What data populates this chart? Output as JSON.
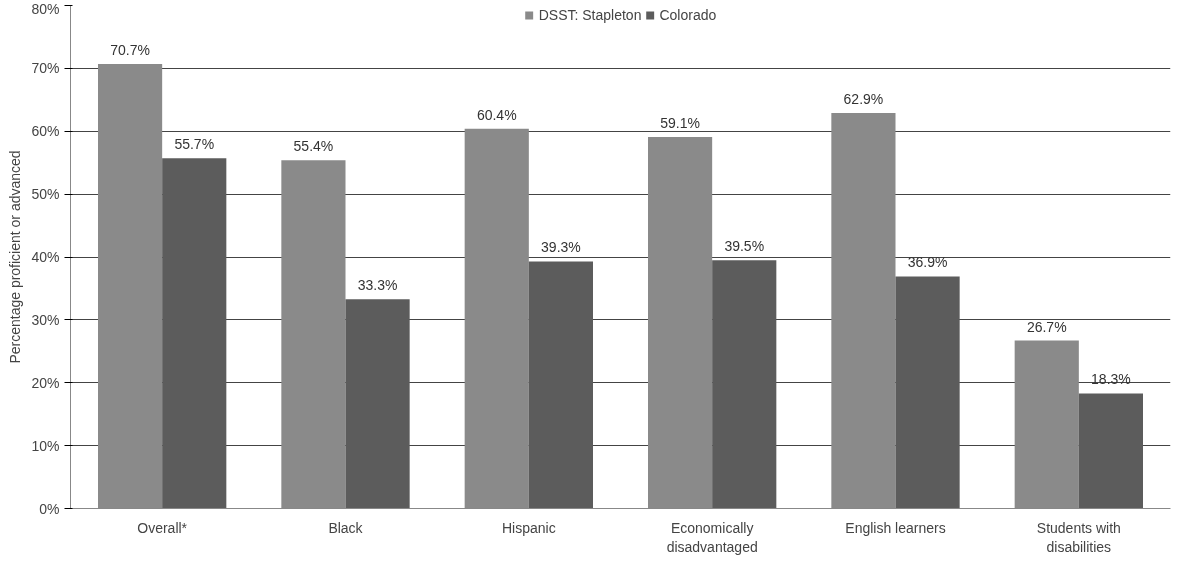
{
  "chart_data": {
    "type": "bar",
    "ylabel": "Percentage proficient or advanced",
    "categories": [
      "Overall*",
      "Black",
      "Hispanic",
      "Economically\ndisadvantaged",
      "English learners",
      "Students with\ndisabilities"
    ],
    "series": [
      {
        "name": "DSST: Stapleton",
        "color": "#8a8a8a",
        "values": [
          70.7,
          55.4,
          60.4,
          59.1,
          62.9,
          26.7
        ],
        "value_labels": [
          "70.7%",
          "55.4%",
          "60.4%",
          "59.1%",
          "62.9%",
          "26.7%"
        ]
      },
      {
        "name": "Colorado",
        "color": "#5c5c5c",
        "values": [
          55.7,
          33.3,
          39.3,
          39.5,
          36.9,
          18.3
        ],
        "value_labels": [
          "55.7%",
          "33.3%",
          "39.3%",
          "39.5%",
          "36.9%",
          "18.3%"
        ]
      }
    ],
    "ylim": [
      0,
      80
    ],
    "yticks": [
      {
        "value": 0,
        "label": "0%"
      },
      {
        "value": 10,
        "label": "10%"
      },
      {
        "value": 20,
        "label": "20%"
      },
      {
        "value": 30,
        "label": "30%"
      },
      {
        "value": 40,
        "label": "40%"
      },
      {
        "value": 50,
        "label": "50%"
      },
      {
        "value": 60,
        "label": "60%"
      },
      {
        "value": 70,
        "label": "70%"
      },
      {
        "value": 80,
        "label": "80%"
      }
    ],
    "grid": "y",
    "legend": "top"
  }
}
